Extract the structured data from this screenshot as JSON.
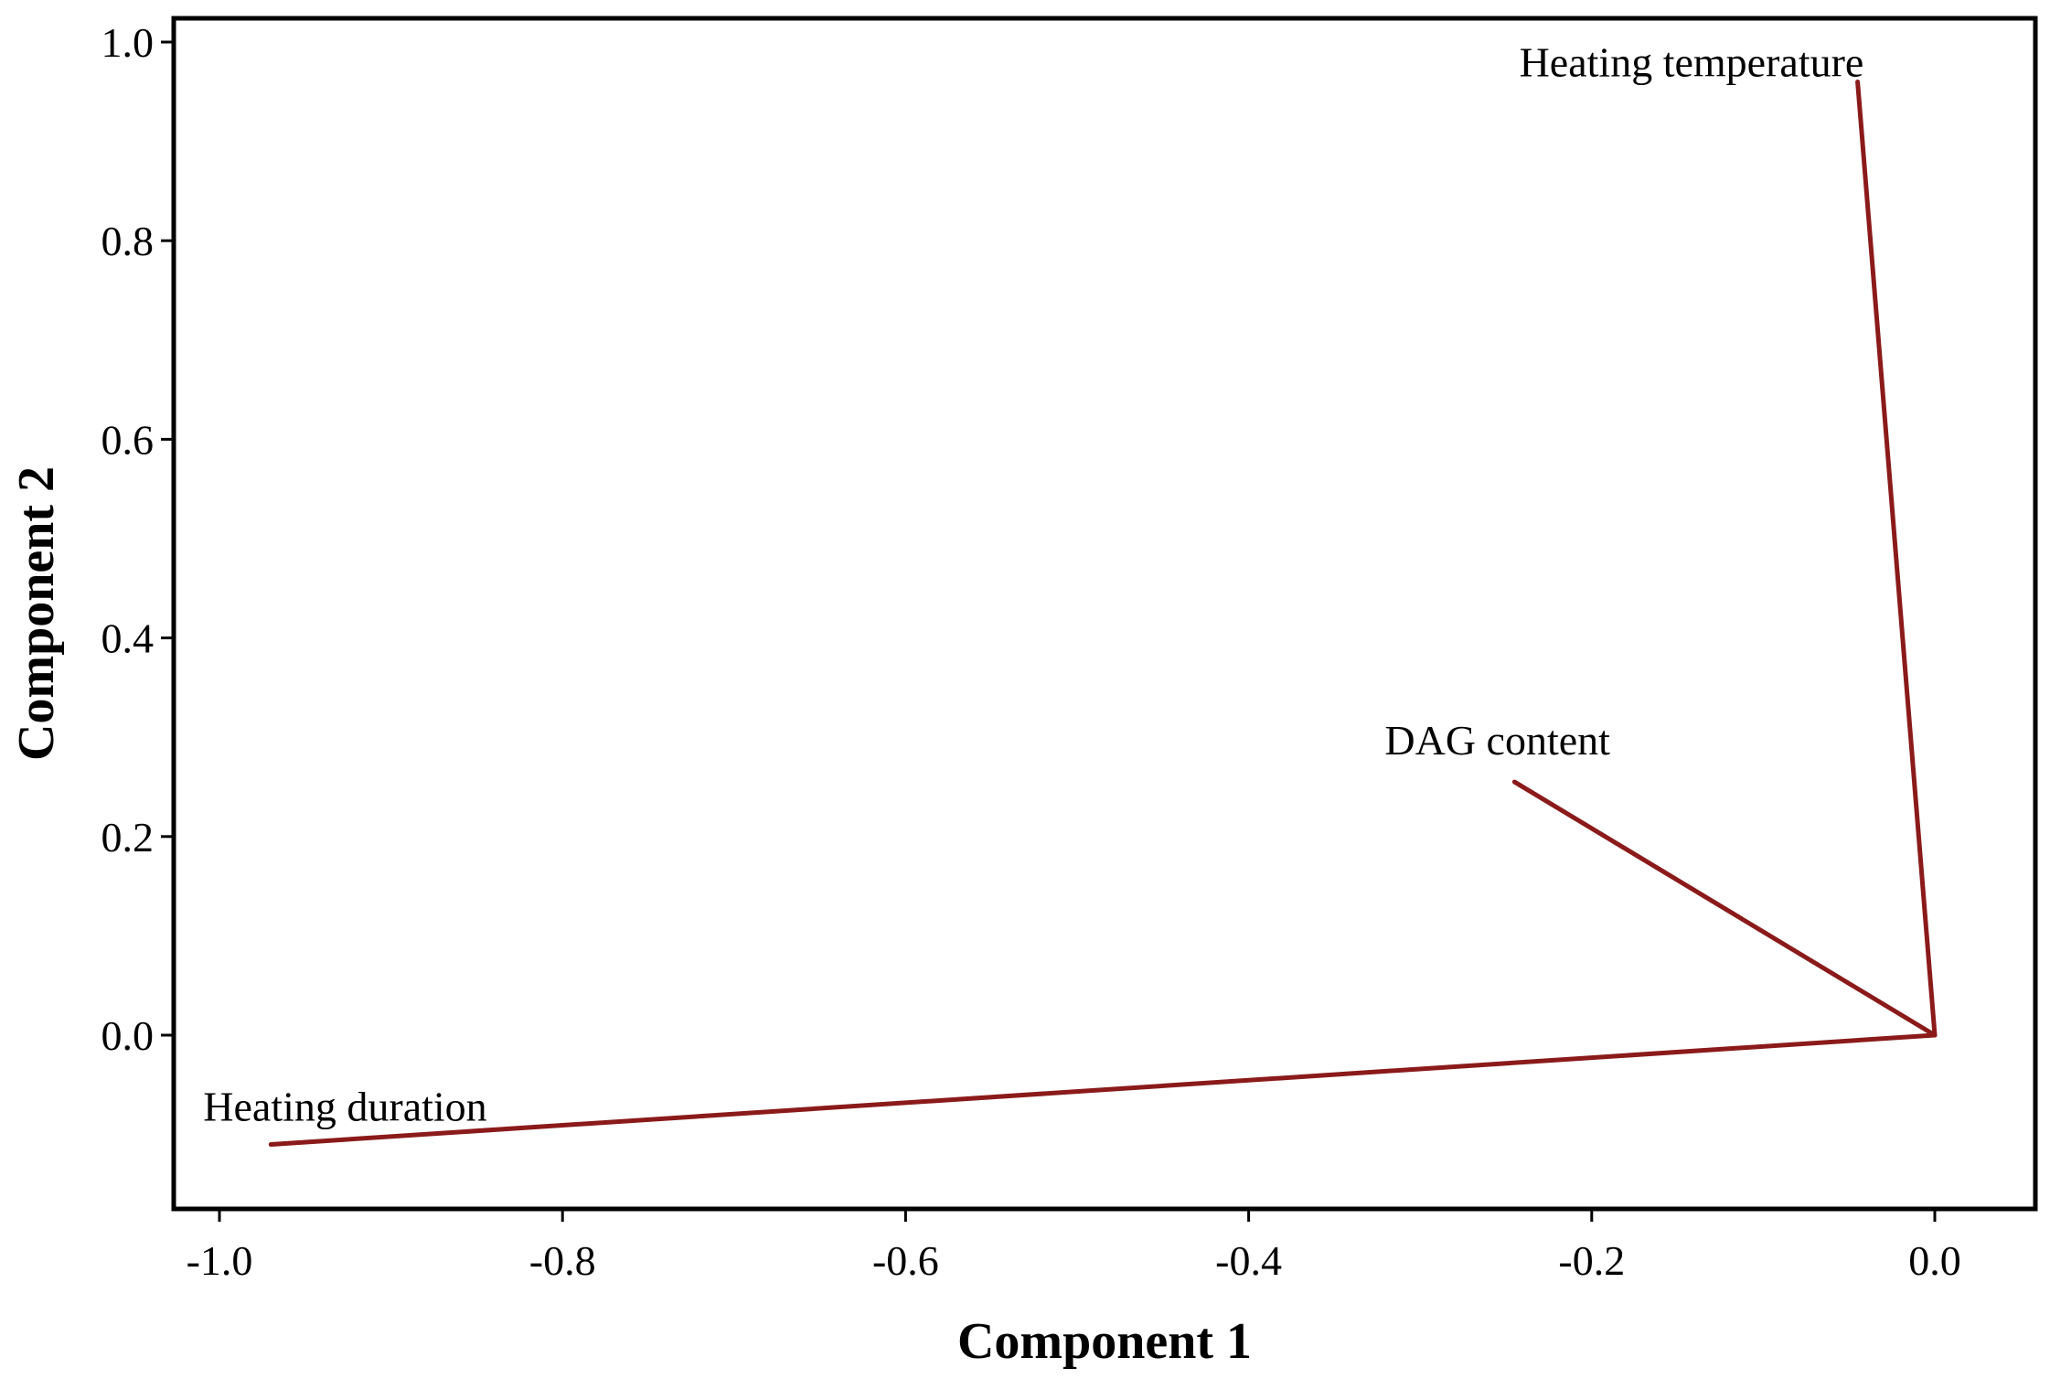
{
  "chart_data": {
    "type": "line",
    "subtype": "loading-vectors",
    "title": "",
    "xlabel": "Component 1",
    "ylabel": "Component 2",
    "xlim": [
      -1.05,
      0.1
    ],
    "ylim": [
      -0.17,
      1.02
    ],
    "x_ticks": [
      -1.0,
      -0.8,
      -0.6,
      -0.4,
      -0.2,
      0.0
    ],
    "x_tick_labels": [
      "-1.0",
      "-0.8",
      "-0.6",
      "-0.4",
      "-0.2",
      "0.0"
    ],
    "y_ticks": [
      0.0,
      0.2,
      0.4,
      0.6,
      0.8,
      1.0
    ],
    "y_tick_labels": [
      "0.0",
      "0.2",
      "0.4",
      "0.6",
      "0.8",
      "1.0"
    ],
    "grid": false,
    "line_color": "#8b1a1a",
    "origin": {
      "x": 0.0,
      "y": 0.0
    },
    "series": [
      {
        "name": "Heating temperature",
        "x": -0.045,
        "y": 0.96
      },
      {
        "name": "DAG content",
        "x": -0.245,
        "y": 0.255
      },
      {
        "name": "Heating duration",
        "x": -0.97,
        "y": -0.11
      }
    ]
  }
}
